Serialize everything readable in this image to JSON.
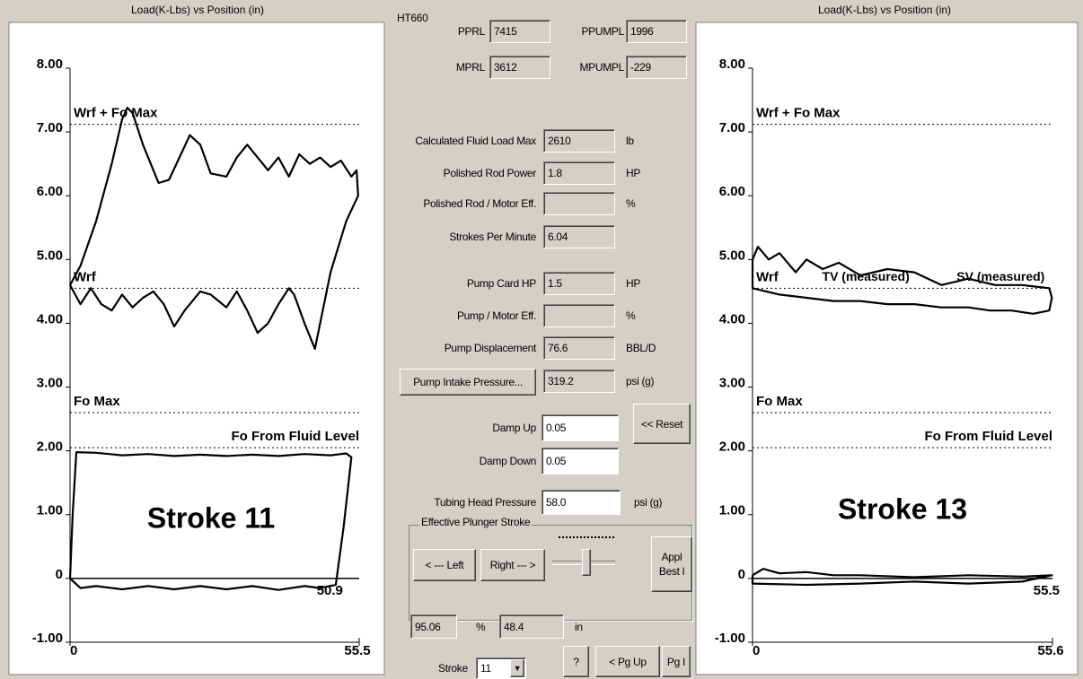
{
  "chart_data": [
    {
      "type": "line",
      "title": "Load(K-Lbs) vs Position (in)",
      "annotations": [
        "Stroke 11"
      ],
      "xlim": [
        0,
        55.5
      ],
      "xticks": [
        0,
        55.5
      ],
      "ylim": [
        -1,
        8
      ],
      "yticks": [
        {
          "value": -1,
          "label": "-1.00"
        },
        0,
        {
          "value": 1,
          "label": "1.00"
        },
        {
          "value": 2,
          "label": "2.00"
        },
        {
          "value": 3,
          "label": "3.00"
        },
        {
          "value": 4,
          "label": "4.00"
        },
        {
          "value": 5,
          "label": "5.00"
        },
        {
          "value": 6,
          "label": "6.00"
        },
        {
          "value": 7,
          "label": "7.00"
        },
        {
          "value": 8,
          "label": "8.00"
        }
      ],
      "ref_lines": [
        {
          "label": "Wrf + Fo Max",
          "value": 7.12
        },
        {
          "label": "Wrf",
          "value": 4.55
        },
        {
          "label": "Fo Max",
          "value": 2.6
        },
        {
          "label": "Fo From Fluid Level",
          "value": 2.05
        }
      ],
      "x_markers": [
        50.9
      ],
      "series": [
        {
          "color": "#000000",
          "x": [
            0,
            2,
            5,
            8,
            10,
            11,
            12,
            14,
            17,
            19,
            21,
            23,
            25,
            27,
            30,
            32,
            34,
            36,
            38,
            40,
            42,
            44,
            46,
            48,
            50,
            52,
            54,
            55,
            55.3,
            53,
            50,
            48,
            47,
            45,
            43,
            42,
            40,
            38,
            36,
            34,
            32,
            30,
            27,
            25,
            22,
            20,
            18,
            16,
            14,
            12,
            10,
            8,
            6,
            4,
            2,
            0
          ],
          "values": [
            4.6,
            4.9,
            5.6,
            6.5,
            7.2,
            7.38,
            7.3,
            6.8,
            6.2,
            6.25,
            6.6,
            6.95,
            6.8,
            6.35,
            6.3,
            6.6,
            6.8,
            6.6,
            6.4,
            6.6,
            6.3,
            6.65,
            6.5,
            6.6,
            6.45,
            6.55,
            6.3,
            6.4,
            6.0,
            5.6,
            4.8,
            4.0,
            3.6,
            4.0,
            4.45,
            4.55,
            4.3,
            4.0,
            3.85,
            4.2,
            4.5,
            4.25,
            4.45,
            4.5,
            4.2,
            3.95,
            4.3,
            4.5,
            4.4,
            4.25,
            4.45,
            4.2,
            4.3,
            4.55,
            4.3,
            4.6
          ]
        },
        {
          "color": "#000000",
          "x": [
            0,
            0.5,
            1.2,
            5,
            10,
            15,
            20,
            25,
            30,
            35,
            40,
            45,
            50,
            53,
            54,
            52.5,
            51,
            48,
            45,
            40,
            35,
            30,
            25,
            20,
            15,
            10,
            5,
            2,
            0
          ],
          "values": [
            0,
            1,
            1.98,
            1.97,
            1.93,
            1.95,
            1.92,
            1.94,
            1.92,
            1.94,
            1.92,
            1.95,
            1.93,
            1.96,
            1.9,
            0.8,
            -0.1,
            -0.15,
            -0.12,
            -0.18,
            -0.12,
            -0.17,
            -0.12,
            -0.17,
            -0.12,
            -0.17,
            -0.12,
            -0.15,
            0
          ]
        }
      ]
    },
    {
      "type": "line",
      "title": "Load(K-Lbs) vs Position (in)",
      "annotations": [
        "Stroke 13",
        "TV (measured)",
        "SV (measured)"
      ],
      "xlim": [
        0,
        55.6
      ],
      "xticks": [
        0,
        55.6
      ],
      "ylim": [
        -1,
        8
      ],
      "yticks": [
        {
          "value": -1,
          "label": "-1.00"
        },
        0,
        {
          "value": 1,
          "label": "1.00"
        },
        {
          "value": 2,
          "label": "2.00"
        },
        {
          "value": 3,
          "label": "3.00"
        },
        {
          "value": 4,
          "label": "4.00"
        },
        {
          "value": 5,
          "label": "5.00"
        },
        {
          "value": 6,
          "label": "6.00"
        },
        {
          "value": 7,
          "label": "7.00"
        },
        {
          "value": 8,
          "label": "8.00"
        }
      ],
      "ref_lines": [
        {
          "label": "Wrf + Fo Max",
          "value": 7.12
        },
        {
          "label": "Wrf",
          "value": 4.55
        },
        {
          "label": "Fo Max",
          "value": 2.6
        },
        {
          "label": "Fo From Fluid Level",
          "value": 2.05
        }
      ],
      "x_markers": [
        55.5
      ],
      "series": [
        {
          "color": "#000000",
          "x": [
            0,
            1,
            3,
            5,
            8,
            10,
            13,
            16,
            20,
            25,
            30,
            35,
            40,
            45,
            50,
            55,
            55.5,
            55,
            52,
            48,
            44,
            40,
            35,
            30,
            25,
            20,
            15,
            10,
            5,
            0,
            0
          ],
          "values": [
            5.0,
            5.2,
            5.0,
            5.1,
            4.8,
            5.0,
            4.85,
            4.95,
            4.75,
            4.85,
            4.8,
            4.6,
            4.7,
            4.6,
            4.6,
            4.55,
            4.4,
            4.2,
            4.15,
            4.2,
            4.2,
            4.25,
            4.25,
            4.3,
            4.3,
            4.35,
            4.35,
            4.4,
            4.45,
            4.55,
            5.0
          ]
        },
        {
          "color": "#000000",
          "x": [
            0,
            2,
            5,
            10,
            15,
            20,
            30,
            40,
            50,
            55.5,
            50,
            40,
            30,
            20,
            10,
            0,
            0
          ],
          "values": [
            0.05,
            0.15,
            0.08,
            0.1,
            0.05,
            0.05,
            0.02,
            0.05,
            0.03,
            0.05,
            -0.05,
            -0.08,
            -0.05,
            -0.08,
            -0.1,
            -0.08,
            0.05
          ]
        }
      ]
    }
  ],
  "panel": {
    "model": "HT660",
    "top_fields": [
      {
        "label": "PPRL",
        "value": "7415"
      },
      {
        "label": "PPUMPL",
        "value": "1996"
      },
      {
        "label": "MPRL",
        "value": "3612"
      },
      {
        "label": "MPUMPL",
        "value": "-229"
      }
    ],
    "fields": [
      {
        "label": "Calculated Fluid Load Max",
        "value": "2610",
        "unit": "lb"
      },
      {
        "label": "Polished Rod Power",
        "value": "1.8",
        "unit": "HP"
      },
      {
        "label": "Polished Rod / Motor Eff.",
        "unit": "%"
      },
      {
        "label": "Strokes Per Minute",
        "value": "6.04"
      },
      {
        "label": "Pump Card HP",
        "value": "1.5",
        "unit": "HP"
      },
      {
        "label": "Pump / Motor Eff.",
        "unit": "%"
      },
      {
        "label": "Pump Displacement",
        "value": "76.6",
        "unit": "BBL/D"
      }
    ],
    "pump_intake": {
      "button": "Pump Intake Pressure...",
      "value": "319.2",
      "unit": "psi (g)"
    },
    "damp": [
      {
        "label": "Damp Up",
        "value": "0.05"
      },
      {
        "label": "Damp Down",
        "value": "0.05"
      }
    ],
    "reset_button": "<< Reset",
    "tubing": {
      "label": "Tubing Head Pressure",
      "value": "58.0",
      "unit": "psi (g)"
    },
    "stroke_group": {
      "title": "Effective Plunger Stroke",
      "left_button": "< --- Left",
      "right_button": "Right --- >",
      "apply_button": [
        "Appl",
        "Best l"
      ],
      "percent": "95.06",
      "percent_unit": "%",
      "length": "48.4",
      "length_unit": "in"
    },
    "stroke_label": "Stroke",
    "stroke_value": "11",
    "help_button": "?",
    "pgup_button": "< Pg Up",
    "pgdn_button": "Pg I"
  }
}
